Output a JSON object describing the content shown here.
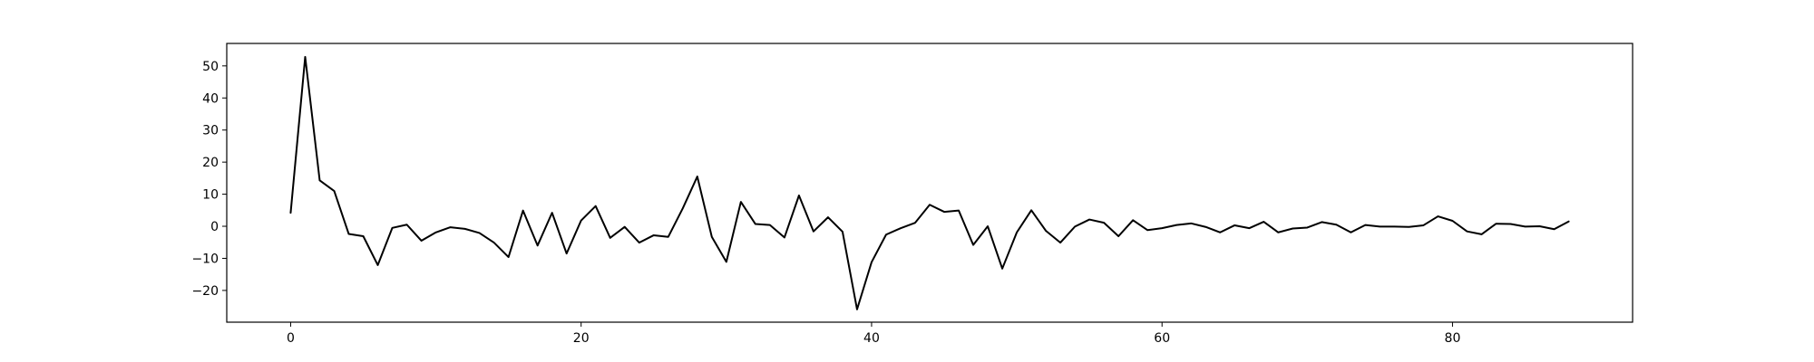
{
  "chart_data": {
    "type": "line",
    "title": "",
    "xlabel": "",
    "ylabel": "",
    "xlim": [
      -4.4,
      92.4
    ],
    "ylim": [
      -29.9,
      57.0
    ],
    "grid": false,
    "x_ticks": [
      0,
      20,
      40,
      60,
      80
    ],
    "y_ticks": [
      -20,
      -10,
      0,
      10,
      20,
      30,
      40,
      50
    ],
    "x_tick_labels": [
      "0",
      "20",
      "40",
      "60",
      "80"
    ],
    "y_tick_labels": [
      "−20",
      "−10",
      "0",
      "10",
      "20",
      "30",
      "40",
      "50"
    ],
    "line_color": "#000000",
    "series": [
      {
        "values": [
          4.2,
          52.8,
          14.3,
          11.0,
          -2.4,
          -3.1,
          -12.1,
          -0.5,
          0.5,
          -4.5,
          -1.9,
          -0.3,
          -0.8,
          -2.1,
          -5.1,
          -9.6,
          4.9,
          -6.0,
          4.2,
          -8.5,
          1.8,
          6.3,
          -3.6,
          -0.2,
          -5.1,
          -2.8,
          -3.3,
          5.6,
          15.5,
          -3.3,
          -11.1,
          7.6,
          0.7,
          0.4,
          -3.5,
          9.6,
          -1.6,
          2.8,
          -1.7,
          -25.9,
          -11.2,
          -2.6,
          -0.6,
          1.1,
          6.7,
          4.5,
          4.9,
          -5.8,
          0.0,
          -13.2,
          -1.9,
          5.0,
          -1.4,
          -5.1,
          -0.1,
          2.1,
          1.1,
          -3.1,
          1.9,
          -1.2,
          -0.6,
          0.4,
          0.9,
          -0.2,
          -1.9,
          0.3,
          -0.6,
          1.4,
          -1.9,
          -0.7,
          -0.4,
          1.3,
          0.5,
          -1.9,
          0.4,
          -0.1,
          -0.1,
          -0.2,
          0.3,
          3.1,
          1.7,
          -1.6,
          -2.5,
          0.8,
          0.7,
          -0.1,
          0.0,
          -0.9,
          1.5
        ]
      }
    ]
  }
}
